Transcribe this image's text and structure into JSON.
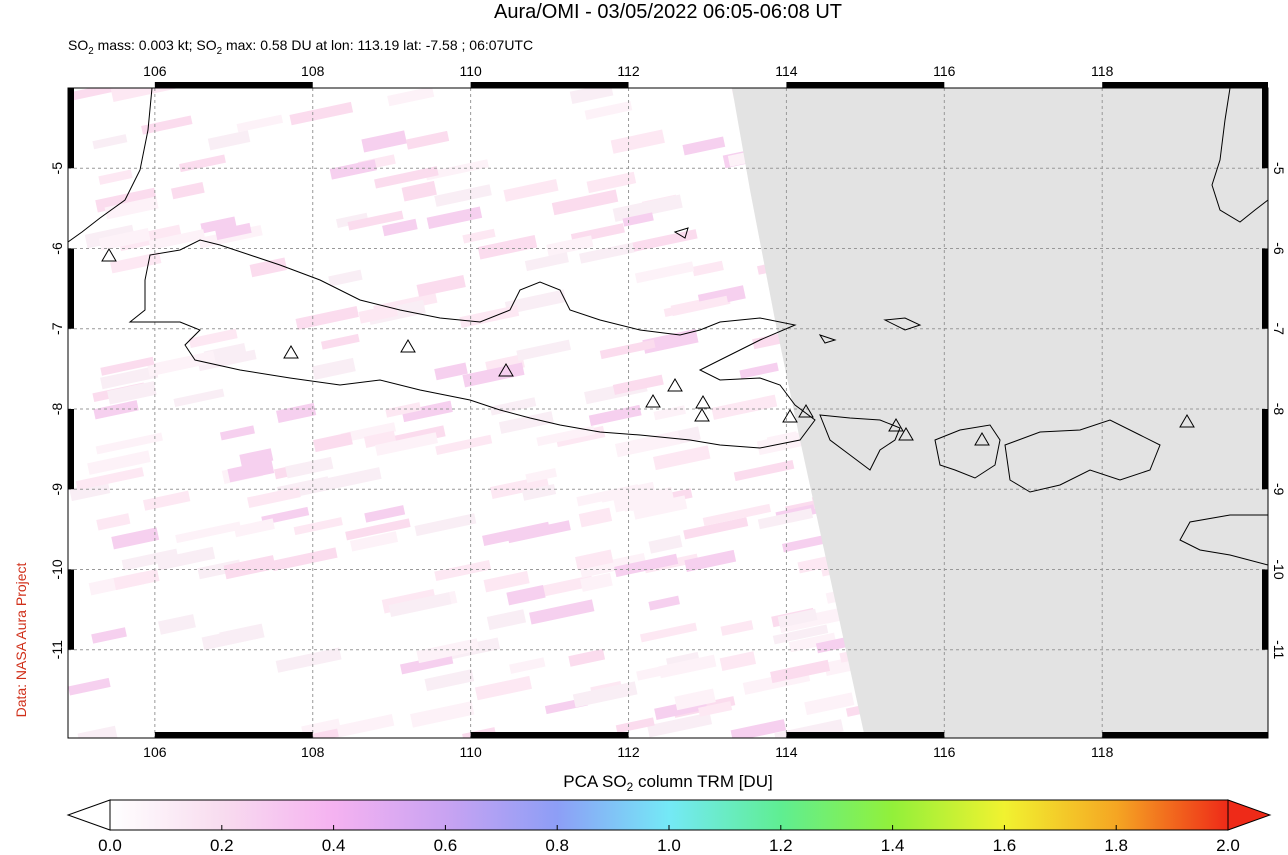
{
  "header": {
    "title": "Aura/OMI - 03/05/2022 06:05-06:08 UT",
    "subtitle": [
      "SO",
      "2",
      " mass: 0.003 kt; SO",
      "2",
      " max: 0.58 DU at lon: 113.19 lat: -7.58 ; 06:07UTC"
    ]
  },
  "chart_data": {
    "type": "map",
    "xlim": [
      104.9,
      120.1
    ],
    "ylim": [
      -12.1,
      -4.0
    ],
    "xticks": [
      106,
      108,
      110,
      112,
      114,
      116,
      118
    ],
    "yticks": [
      -5,
      -6,
      -7,
      -8,
      -9,
      -10,
      -11
    ],
    "grid": true
  },
  "colorbar": {
    "label": [
      "PCA SO",
      "2",
      " column TRM [DU]"
    ],
    "lim": [
      0,
      2
    ],
    "ticks": [
      {
        "value": 0,
        "label": "0.0"
      },
      {
        "value": 0.2,
        "label": "0.2"
      },
      {
        "value": 0.4,
        "label": "0.4"
      },
      {
        "value": 0.6,
        "label": "0.6"
      },
      {
        "value": 0.8,
        "label": "0.8"
      },
      {
        "value": 1,
        "label": "1.0"
      },
      {
        "value": 1.2,
        "label": "1.2"
      },
      {
        "value": 1.4,
        "label": "1.4"
      },
      {
        "value": 1.6,
        "label": "1.6"
      },
      {
        "value": 1.8,
        "label": "1.8"
      },
      {
        "value": 2,
        "label": "2.0"
      }
    ],
    "colors": [
      "#ffffff",
      "#f8dcef",
      "#f5b2f1",
      "#c9a3f2",
      "#8d9ef6",
      "#74e9f6",
      "#5fee92",
      "#92f03a",
      "#f1f230",
      "#f5a623",
      "#ee2a18"
    ]
  },
  "credit": "Data: NASA Aura Project"
}
